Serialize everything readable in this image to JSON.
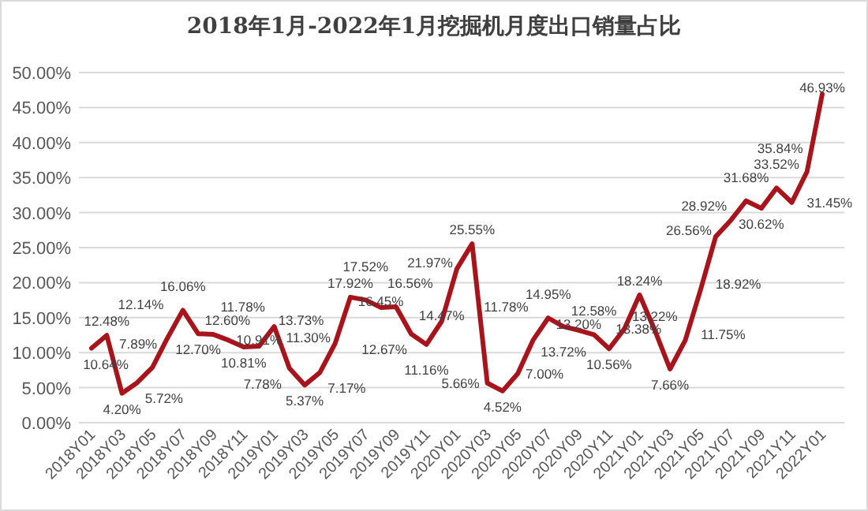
{
  "chart_data": {
    "type": "line",
    "title": "2018年1月-2022年1月挖掘机月度出口销量占比",
    "categories": [
      "2018Y01",
      null,
      "2018Y03",
      null,
      "2018Y05",
      null,
      "2018Y07",
      null,
      "2018Y09",
      null,
      "2018Y11",
      null,
      "2019Y01",
      null,
      "2019Y03",
      null,
      "2019Y05",
      null,
      "2019Y07",
      null,
      "2019Y09",
      null,
      "2019Y11",
      null,
      "2020Y01",
      null,
      "2020Y03",
      null,
      "2020Y05",
      null,
      "2020Y07",
      null,
      "2020Y09",
      null,
      "2020Y11",
      null,
      "2021Y01",
      null,
      "2021Y03",
      null,
      "2021Y05",
      null,
      "2021Y07",
      null,
      "2021Y09",
      null,
      "2021Y11",
      null,
      "2022Y01"
    ],
    "series": [
      {
        "color": "#a8141c",
        "values": [
          10.64,
          12.48,
          4.2,
          5.72,
          7.89,
          12.14,
          16.06,
          12.7,
          12.6,
          11.78,
          10.81,
          10.91,
          13.73,
          7.78,
          5.37,
          7.17,
          11.3,
          17.92,
          17.52,
          16.45,
          16.56,
          12.67,
          11.16,
          14.47,
          21.97,
          25.55,
          5.66,
          4.52,
          7.0,
          11.78,
          14.95,
          13.72,
          13.2,
          12.58,
          10.56,
          13.38,
          18.24,
          13.22,
          7.66,
          11.75,
          18.92,
          26.56,
          28.92,
          31.68,
          30.62,
          33.52,
          31.45,
          35.84,
          46.93
        ],
        "value_labels": [
          "10.64%",
          "12.48%",
          "4.20%",
          "5.72%",
          "7.89%",
          "12.14%",
          "16.06%",
          "12.70%",
          "12.60%",
          "11.78%",
          "10.81%",
          "10.91%",
          "13.73%",
          "7.78%",
          "5.37%",
          "7.17%",
          "11.30%",
          "17.92%",
          "17.52%",
          "16.45%",
          "16.56%",
          "12.67%",
          "11.16%",
          "14.47%",
          "21.97%",
          "25.55%",
          "5.66%",
          "4.52%",
          "7.00%",
          "11.78%",
          "14.95%",
          "13.72%",
          "13.20%",
          "12.58%",
          "10.56%",
          "13.38%",
          "18.24%",
          "13.22%",
          "7.66%",
          "11.75%",
          "18.92%",
          "26.56%",
          "28.92%",
          "31.68%",
          "30.62%",
          "33.52%",
          "31.45%",
          "35.84%",
          "46.93%"
        ]
      }
    ],
    "ylim": [
      0,
      50
    ],
    "yticks": [
      {
        "value": 0,
        "label": "0.00%"
      },
      {
        "value": 5,
        "label": "5.00%"
      },
      {
        "value": 10,
        "label": "10.00%"
      },
      {
        "value": 15,
        "label": "15.00%"
      },
      {
        "value": 20,
        "label": "20.00%"
      },
      {
        "value": 25,
        "label": "25.00%"
      },
      {
        "value": 30,
        "label": "30.00%"
      },
      {
        "value": 35,
        "label": "35.00%"
      },
      {
        "value": 40,
        "label": "40.00%"
      },
      {
        "value": 45,
        "label": "45.00%"
      },
      {
        "value": 50,
        "label": "50.00%"
      }
    ],
    "grid": "y",
    "marker": "none",
    "line_style": "solid"
  }
}
